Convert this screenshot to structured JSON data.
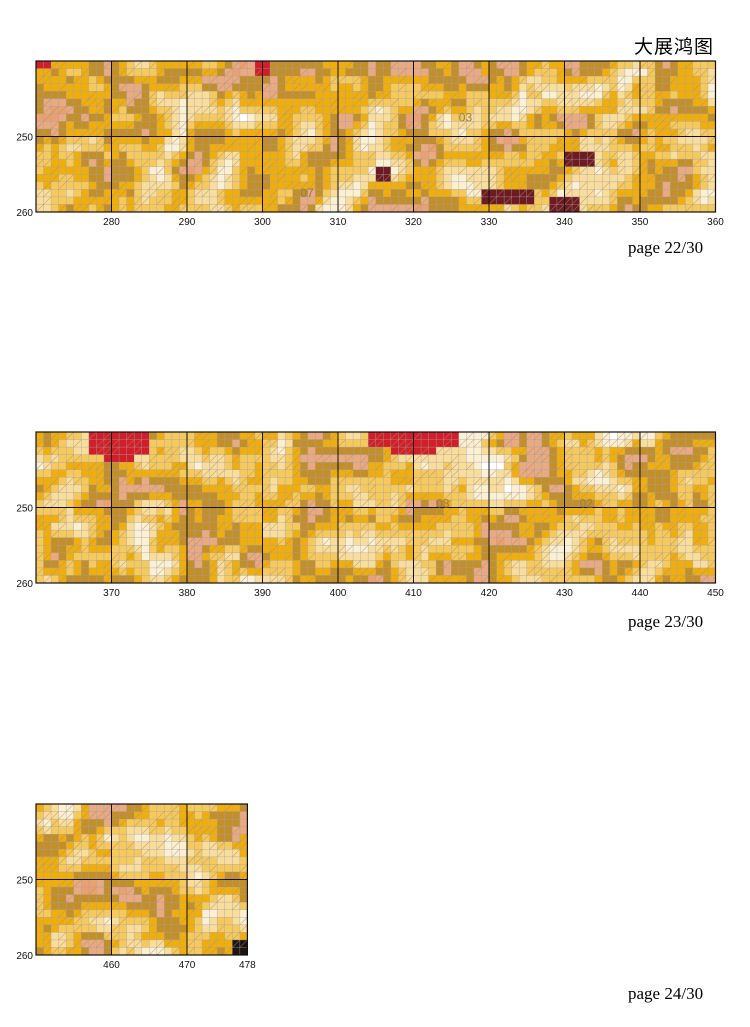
{
  "header": {
    "title": "大展鸿图"
  },
  "palette": {
    "white": "#ffffff",
    "cream": "#fbf0d4",
    "pale_yellow": "#f9dd9c",
    "light_gold": "#f5c95e",
    "gold": "#efae0e",
    "mustard": "#c28f2a",
    "tan": "#e8a983",
    "salmon": "#eaa070",
    "red": "#d11e2a",
    "maroon": "#6e1a23",
    "black": "#1e1414"
  },
  "pages": [
    {
      "page_label": "page 22/30",
      "x_start": 271,
      "x_end": 360,
      "y_start": 241,
      "y_end": 260,
      "x_ticks": [
        "280",
        "290",
        "300",
        "310",
        "320",
        "330",
        "340",
        "350",
        "360"
      ],
      "y_ticks": [
        "250",
        "260"
      ],
      "region_labels": [
        {
          "text": "07",
          "col": 306,
          "row": 258
        },
        {
          "text": "03",
          "col": 327,
          "row": 248
        }
      ],
      "red_patches": [
        {
          "col0": 271,
          "col1": 272,
          "row0": 241,
          "row1": 241
        },
        {
          "col0": 300,
          "col1": 301,
          "row0": 241,
          "row1": 242
        }
      ],
      "maroon_patches": [
        {
          "col0": 316,
          "col1": 317,
          "row0": 255,
          "row1": 256
        },
        {
          "col0": 330,
          "col1": 336,
          "row0": 258,
          "row1": 259
        },
        {
          "col0": 341,
          "col1": 344,
          "row0": 253,
          "row1": 254
        },
        {
          "col0": 339,
          "col1": 342,
          "row0": 259,
          "row1": 260
        }
      ],
      "dark_patches": []
    },
    {
      "page_label": "page 23/30",
      "x_start": 361,
      "x_end": 450,
      "y_start": 241,
      "y_end": 260,
      "x_ticks": [
        "370",
        "380",
        "390",
        "400",
        "410",
        "420",
        "430",
        "440",
        "450"
      ],
      "y_ticks": [
        "250",
        "260"
      ],
      "region_labels": [
        {
          "text": "08",
          "col": 414,
          "row": 250
        },
        {
          "text": "02",
          "col": 433,
          "row": 250
        }
      ],
      "red_patches": [
        {
          "col0": 368,
          "col1": 375,
          "row0": 241,
          "row1": 243
        },
        {
          "col0": 370,
          "col1": 373,
          "row0": 244,
          "row1": 244
        },
        {
          "col0": 405,
          "col1": 416,
          "row0": 241,
          "row1": 242
        },
        {
          "col0": 408,
          "col1": 413,
          "row0": 243,
          "row1": 243
        }
      ],
      "maroon_patches": [],
      "dark_patches": []
    },
    {
      "page_label": "page 24/30",
      "x_start": 451,
      "x_end": 478,
      "y_start": 241,
      "y_end": 260,
      "x_ticks": [
        "460",
        "470",
        "478"
      ],
      "y_ticks": [
        "250",
        "260"
      ],
      "region_labels": [],
      "red_patches": [],
      "maroon_patches": [],
      "dark_patches": [
        {
          "col0": 477,
          "col1": 478,
          "row0": 259,
          "row1": 260
        }
      ]
    }
  ]
}
